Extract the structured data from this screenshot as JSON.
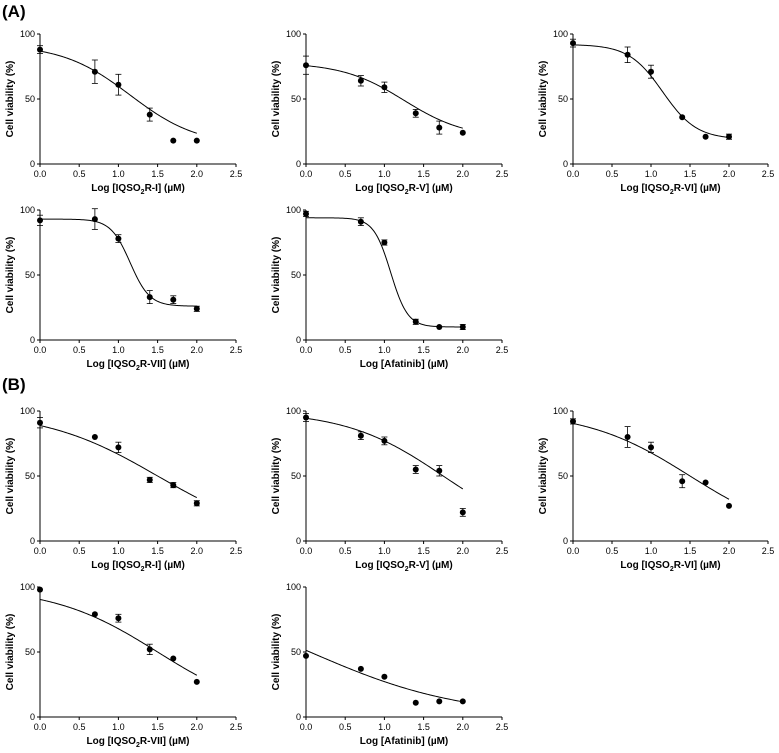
{
  "panels": [
    {
      "label": "(A)"
    },
    {
      "label": "(B)"
    }
  ],
  "chart_data": [
    {
      "panel": "A",
      "type": "scatter",
      "title": "",
      "xlabel": "Log [IQSO",
      "xlabel_sub": "2",
      "xlabel_rest": "R-I] (µM)",
      "ylabel": "Cell viability (%)",
      "xlim": [
        0,
        2.5
      ],
      "ylim": [
        0,
        100
      ],
      "x_ticks": [
        "0.0",
        "0.5",
        "1.0",
        "1.5",
        "2.0",
        "2.5"
      ],
      "y_ticks": [
        "0",
        "50",
        "100"
      ],
      "points": [
        {
          "x": 0.0,
          "y": 88,
          "err": 3
        },
        {
          "x": 0.7,
          "y": 71,
          "err": 9
        },
        {
          "x": 1.0,
          "y": 61,
          "err": 8
        },
        {
          "x": 1.4,
          "y": 38,
          "err": 5
        },
        {
          "x": 1.7,
          "y": 18,
          "err": 0
        },
        {
          "x": 2.0,
          "y": 18,
          "err": 0
        }
      ],
      "fit": {
        "top": 92,
        "bottom": 14,
        "logIC50": 1.15,
        "hill": 1.0
      }
    },
    {
      "panel": "A",
      "type": "scatter",
      "title": "",
      "xlabel": "Log [IQSO",
      "xlabel_sub": "2",
      "xlabel_rest": "R-V] (µM)",
      "ylabel": "Cell viability (%)",
      "xlim": [
        0,
        2.5
      ],
      "ylim": [
        0,
        100
      ],
      "x_ticks": [
        "0.0",
        "0.5",
        "1.0",
        "1.5",
        "2.0",
        "2.5"
      ],
      "y_ticks": [
        "0",
        "50",
        "100"
      ],
      "points": [
        {
          "x": 0.0,
          "y": 76,
          "err": 7
        },
        {
          "x": 0.7,
          "y": 64,
          "err": 4
        },
        {
          "x": 1.0,
          "y": 59,
          "err": 4
        },
        {
          "x": 1.4,
          "y": 39,
          "err": 3
        },
        {
          "x": 1.7,
          "y": 28,
          "err": 5
        },
        {
          "x": 2.0,
          "y": 24,
          "err": 0
        }
      ],
      "fit": {
        "top": 78,
        "bottom": 20,
        "logIC50": 1.25,
        "hill": 1.1
      }
    },
    {
      "panel": "A",
      "type": "scatter",
      "title": "",
      "xlabel": "Log [IQSO",
      "xlabel_sub": "2",
      "xlabel_rest": "R-VI] (µM)",
      "ylabel": "Cell viability (%)",
      "xlim": [
        0,
        2.5
      ],
      "ylim": [
        0,
        100
      ],
      "x_ticks": [
        "0.0",
        "0.5",
        "1.0",
        "1.5",
        "2.0",
        "2.5"
      ],
      "y_ticks": [
        "0",
        "50",
        "100"
      ],
      "points": [
        {
          "x": 0.0,
          "y": 93,
          "err": 3
        },
        {
          "x": 0.7,
          "y": 84,
          "err": 6
        },
        {
          "x": 1.0,
          "y": 71,
          "err": 5
        },
        {
          "x": 1.4,
          "y": 36,
          "err": 0
        },
        {
          "x": 1.7,
          "y": 21,
          "err": 0
        },
        {
          "x": 2.0,
          "y": 21,
          "err": 2
        }
      ],
      "fit": {
        "top": 92,
        "bottom": 19,
        "logIC50": 1.15,
        "hill": 2.0
      }
    },
    {
      "panel": "A",
      "type": "scatter",
      "title": "",
      "xlabel": "Log [IQSO",
      "xlabel_sub": "2",
      "xlabel_rest": "R-VII] (µM)",
      "ylabel": "Cell viability (%)",
      "xlim": [
        0,
        2.5
      ],
      "ylim": [
        0,
        100
      ],
      "x_ticks": [
        "0.0",
        "0.5",
        "1.0",
        "1.5",
        "2.0",
        "2.5"
      ],
      "y_ticks": [
        "0",
        "50",
        "100"
      ],
      "points": [
        {
          "x": 0.0,
          "y": 92,
          "err": 4
        },
        {
          "x": 0.7,
          "y": 93,
          "err": 8
        },
        {
          "x": 1.0,
          "y": 78,
          "err": 3
        },
        {
          "x": 1.4,
          "y": 33,
          "err": 5
        },
        {
          "x": 1.7,
          "y": 31,
          "err": 3
        },
        {
          "x": 2.0,
          "y": 24,
          "err": 2
        }
      ],
      "fit": {
        "top": 93,
        "bottom": 26,
        "logIC50": 1.15,
        "hill": 3.5
      }
    },
    {
      "panel": "A",
      "type": "scatter",
      "title": "",
      "xlabel": "Log [Afatinib] (µM)",
      "xlabel_sub": "",
      "xlabel_rest": "",
      "ylabel": "Cell viability (%)",
      "xlim": [
        0,
        2.5
      ],
      "ylim": [
        0,
        100
      ],
      "x_ticks": [
        "0.0",
        "0.5",
        "1.0",
        "1.5",
        "2.0",
        "2.5"
      ],
      "y_ticks": [
        "0",
        "50",
        "100"
      ],
      "points": [
        {
          "x": 0.0,
          "y": 97,
          "err": 2
        },
        {
          "x": 0.7,
          "y": 91,
          "err": 3
        },
        {
          "x": 1.0,
          "y": 75,
          "err": 2
        },
        {
          "x": 1.4,
          "y": 14,
          "err": 2
        },
        {
          "x": 1.7,
          "y": 10,
          "err": 0
        },
        {
          "x": 2.0,
          "y": 10,
          "err": 2
        }
      ],
      "fit": {
        "top": 94,
        "bottom": 10,
        "logIC50": 1.08,
        "hill": 4.0
      }
    },
    {
      "panel": "B",
      "type": "scatter",
      "title": "",
      "xlabel": "Log [IQSO",
      "xlabel_sub": "2",
      "xlabel_rest": "R-I] (µM)",
      "ylabel": "Cell viability (%)",
      "xlim": [
        0,
        2.5
      ],
      "ylim": [
        0,
        100
      ],
      "x_ticks": [
        "0.0",
        "0.5",
        "1.0",
        "1.5",
        "2.0",
        "2.5"
      ],
      "y_ticks": [
        "0",
        "50",
        "100"
      ],
      "points": [
        {
          "x": 0.0,
          "y": 91,
          "err": 4
        },
        {
          "x": 0.7,
          "y": 80,
          "err": 0
        },
        {
          "x": 1.0,
          "y": 72,
          "err": 4
        },
        {
          "x": 1.4,
          "y": 47,
          "err": 2
        },
        {
          "x": 1.7,
          "y": 43,
          "err": 2
        },
        {
          "x": 2.0,
          "y": 29,
          "err": 2
        }
      ],
      "fit": {
        "top": 100,
        "bottom": 0,
        "logIC50": 1.5,
        "hill": 0.6
      }
    },
    {
      "panel": "B",
      "type": "scatter",
      "title": "",
      "xlabel": "Log [IQSO",
      "xlabel_sub": "2",
      "xlabel_rest": "R-V] (µM)",
      "ylabel": "Cell viability (%)",
      "xlim": [
        0,
        2.5
      ],
      "ylim": [
        0,
        100
      ],
      "x_ticks": [
        "0.0",
        "0.5",
        "1.0",
        "1.5",
        "2.0",
        "2.5"
      ],
      "y_ticks": [
        "0",
        "50",
        "100"
      ],
      "points": [
        {
          "x": 0.0,
          "y": 95,
          "err": 3
        },
        {
          "x": 0.7,
          "y": 81,
          "err": 3
        },
        {
          "x": 1.0,
          "y": 77,
          "err": 3
        },
        {
          "x": 1.4,
          "y": 55,
          "err": 3
        },
        {
          "x": 1.7,
          "y": 54,
          "err": 4
        },
        {
          "x": 2.0,
          "y": 22,
          "err": 3
        }
      ],
      "fit": {
        "top": 100,
        "bottom": 0,
        "logIC50": 1.75,
        "hill": 0.7
      }
    },
    {
      "panel": "B",
      "type": "scatter",
      "title": "",
      "xlabel": "Log [IQSO",
      "xlabel_sub": "2",
      "xlabel_rest": "R-VI] (µM)",
      "ylabel": "Cell viability (%)",
      "xlim": [
        0,
        2.5
      ],
      "ylim": [
        0,
        100
      ],
      "x_ticks": [
        "0.0",
        "0.5",
        "1.0",
        "1.5",
        "2.0",
        "2.5"
      ],
      "y_ticks": [
        "0",
        "50",
        "100"
      ],
      "points": [
        {
          "x": 0.0,
          "y": 92,
          "err": 2
        },
        {
          "x": 0.7,
          "y": 80,
          "err": 8
        },
        {
          "x": 1.0,
          "y": 72,
          "err": 4
        },
        {
          "x": 1.4,
          "y": 46,
          "err": 5
        },
        {
          "x": 1.7,
          "y": 45,
          "err": 0
        },
        {
          "x": 2.0,
          "y": 27,
          "err": 0
        }
      ],
      "fit": {
        "top": 100,
        "bottom": 0,
        "logIC50": 1.5,
        "hill": 0.65
      }
    },
    {
      "panel": "B",
      "type": "scatter",
      "title": "",
      "xlabel": "Log [IQSO",
      "xlabel_sub": "2",
      "xlabel_rest": "R-VII] (µM)",
      "ylabel": "Cell viability (%)",
      "xlim": [
        0,
        2.5
      ],
      "ylim": [
        0,
        100
      ],
      "x_ticks": [
        "0.0",
        "0.5",
        "1.0",
        "1.5",
        "2.0",
        "2.5"
      ],
      "y_ticks": [
        "0",
        "50",
        "100"
      ],
      "points": [
        {
          "x": 0.0,
          "y": 98,
          "err": 0
        },
        {
          "x": 0.7,
          "y": 79,
          "err": 0
        },
        {
          "x": 1.0,
          "y": 76,
          "err": 3
        },
        {
          "x": 1.4,
          "y": 52,
          "err": 4
        },
        {
          "x": 1.7,
          "y": 45,
          "err": 0
        },
        {
          "x": 2.0,
          "y": 27,
          "err": 0
        }
      ],
      "fit": {
        "top": 100,
        "bottom": 0,
        "logIC50": 1.5,
        "hill": 0.65
      }
    },
    {
      "panel": "B",
      "type": "scatter",
      "title": "",
      "xlabel": "Log [Afatinib] (µM)",
      "xlabel_sub": "",
      "xlabel_rest": "",
      "ylabel": "Cell viability (%)",
      "xlim": [
        0,
        2.5
      ],
      "ylim": [
        0,
        100
      ],
      "x_ticks": [
        "0.0",
        "0.5",
        "1.0",
        "1.5",
        "2.0",
        "2.5"
      ],
      "y_ticks": [
        "0",
        "50",
        "100"
      ],
      "points": [
        {
          "x": 0.0,
          "y": 47,
          "err": 0
        },
        {
          "x": 0.7,
          "y": 37,
          "err": 0
        },
        {
          "x": 1.0,
          "y": 31,
          "err": 0
        },
        {
          "x": 1.4,
          "y": 11,
          "err": 0
        },
        {
          "x": 1.7,
          "y": 12,
          "err": 0
        },
        {
          "x": 2.0,
          "y": 12,
          "err": 0
        }
      ],
      "fit": {
        "top": 100,
        "bottom": 0,
        "logIC50": 0.05,
        "hill": 0.45
      }
    }
  ]
}
